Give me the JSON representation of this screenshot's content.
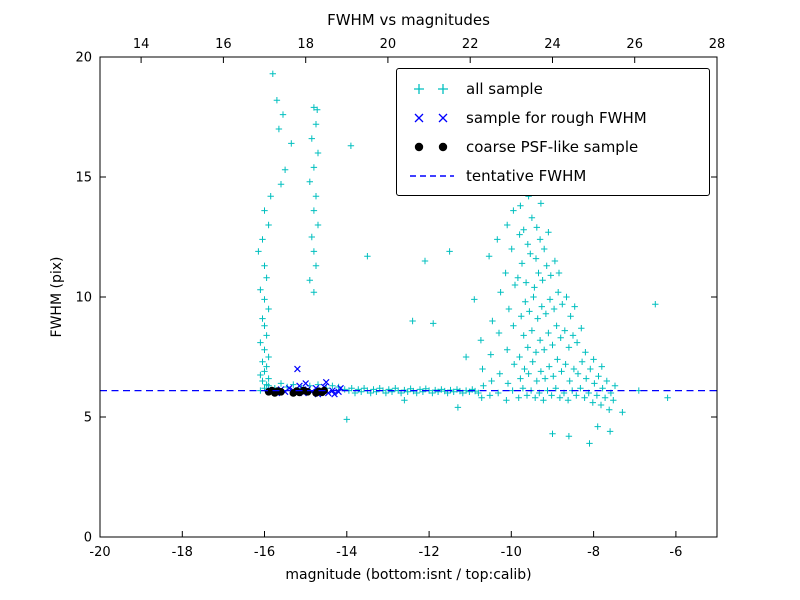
{
  "chart_data": {
    "type": "scatter",
    "title": "FWHM vs magnitudes",
    "xlabel": "magnitude (bottom:isnt / top:calib)",
    "ylabel": "FWHM (pix)",
    "x_range": [
      -20,
      -5
    ],
    "x_ticks": [
      -20,
      -18,
      -16,
      -14,
      -12,
      -10,
      -8,
      -6
    ],
    "x_top_range": [
      13,
      28
    ],
    "x_top_ticks": [
      14,
      16,
      18,
      20,
      22,
      24,
      26,
      28
    ],
    "y_range": [
      0,
      20
    ],
    "y_ticks": [
      0,
      5,
      10,
      15,
      20
    ],
    "grid": false,
    "legend_position": "upper right",
    "axis_color": "#000000",
    "series": [
      {
        "name": "all sample",
        "marker": "plus",
        "color": "#00bfbf",
        "points": [
          [
            -16.1,
            6.1
          ],
          [
            -16.0,
            6.2
          ],
          [
            -15.95,
            6.35
          ],
          [
            -16.05,
            6.5
          ],
          [
            -15.9,
            6.6
          ],
          [
            -16.1,
            6.75
          ],
          [
            -16.0,
            6.9
          ],
          [
            -15.95,
            7.1
          ],
          [
            -16.05,
            7.3
          ],
          [
            -15.9,
            7.5
          ],
          [
            -16.0,
            7.8
          ],
          [
            -16.1,
            8.1
          ],
          [
            -15.95,
            8.4
          ],
          [
            -16.0,
            8.8
          ],
          [
            -16.05,
            9.1
          ],
          [
            -15.9,
            9.5
          ],
          [
            -16.0,
            9.9
          ],
          [
            -16.1,
            10.3
          ],
          [
            -15.95,
            10.8
          ],
          [
            -16.0,
            11.3
          ],
          [
            -16.15,
            11.9
          ],
          [
            -16.05,
            12.4
          ],
          [
            -15.9,
            13.0
          ],
          [
            -16.0,
            13.6
          ],
          [
            -15.85,
            14.2
          ],
          [
            -15.8,
            19.3
          ],
          [
            -15.7,
            18.2
          ],
          [
            -15.55,
            17.6
          ],
          [
            -15.65,
            17.0
          ],
          [
            -15.35,
            16.4
          ],
          [
            -15.5,
            15.3
          ],
          [
            -15.6,
            14.7
          ],
          [
            -14.8,
            17.9
          ],
          [
            -14.75,
            17.2
          ],
          [
            -14.85,
            16.6
          ],
          [
            -14.7,
            16.0
          ],
          [
            -14.8,
            15.4
          ],
          [
            -14.9,
            14.8
          ],
          [
            -14.75,
            14.2
          ],
          [
            -14.8,
            13.6
          ],
          [
            -14.7,
            13.0
          ],
          [
            -14.85,
            12.5
          ],
          [
            -14.8,
            11.9
          ],
          [
            -14.75,
            11.3
          ],
          [
            -14.9,
            10.7
          ],
          [
            -14.8,
            10.2
          ],
          [
            -14.72,
            17.8
          ],
          [
            -13.9,
            16.3
          ],
          [
            -13.5,
            11.7
          ],
          [
            -12.1,
            11.5
          ],
          [
            -12.4,
            9.0
          ],
          [
            -11.9,
            8.9
          ],
          [
            -11.5,
            11.9
          ],
          [
            -11.1,
            7.5
          ],
          [
            -10.9,
            9.9
          ],
          [
            -15.9,
            6.3
          ],
          [
            -15.75,
            6.2
          ],
          [
            -15.6,
            6.4
          ],
          [
            -15.45,
            6.25
          ],
          [
            -15.3,
            6.35
          ],
          [
            -15.1,
            6.2
          ],
          [
            -14.9,
            6.3
          ],
          [
            -14.7,
            6.35
          ],
          [
            -14.5,
            6.2
          ],
          [
            -14.35,
            6.3
          ],
          [
            -14.2,
            6.25
          ],
          [
            -14.05,
            6.15
          ],
          [
            -13.95,
            6.1
          ],
          [
            -13.88,
            6.2
          ],
          [
            -13.8,
            6.0
          ],
          [
            -13.72,
            6.15
          ],
          [
            -13.65,
            6.05
          ],
          [
            -13.58,
            6.2
          ],
          [
            -13.5,
            6.1
          ],
          [
            -13.42,
            6.0
          ],
          [
            -13.35,
            6.15
          ],
          [
            -13.28,
            6.05
          ],
          [
            -13.2,
            6.2
          ],
          [
            -13.12,
            6.1
          ],
          [
            -13.05,
            6.0
          ],
          [
            -12.98,
            6.15
          ],
          [
            -12.9,
            6.05
          ],
          [
            -12.82,
            6.2
          ],
          [
            -12.75,
            6.1
          ],
          [
            -12.68,
            6.0
          ],
          [
            -12.6,
            6.12
          ],
          [
            -12.52,
            6.05
          ],
          [
            -12.45,
            6.18
          ],
          [
            -12.38,
            6.08
          ],
          [
            -12.3,
            6.0
          ],
          [
            -12.22,
            6.15
          ],
          [
            -12.15,
            6.05
          ],
          [
            -12.08,
            6.18
          ],
          [
            -12.0,
            6.1
          ],
          [
            -11.92,
            6.0
          ],
          [
            -11.85,
            6.12
          ],
          [
            -11.78,
            6.05
          ],
          [
            -11.7,
            6.15
          ],
          [
            -11.62,
            6.08
          ],
          [
            -11.55,
            6.0
          ],
          [
            -11.48,
            6.12
          ],
          [
            -11.4,
            6.05
          ],
          [
            -11.32,
            6.15
          ],
          [
            -11.25,
            6.08
          ],
          [
            -11.18,
            6.0
          ],
          [
            -11.1,
            6.1
          ],
          [
            -11.02,
            6.05
          ],
          [
            -10.95,
            6.15
          ],
          [
            -10.88,
            6.08
          ],
          [
            -10.8,
            6.0
          ],
          [
            -14.0,
            4.9
          ],
          [
            -12.6,
            5.7
          ],
          [
            -11.3,
            5.4
          ],
          [
            -10.72,
            5.8
          ],
          [
            -10.68,
            6.3
          ],
          [
            -10.7,
            7.0
          ],
          [
            -10.74,
            8.2
          ],
          [
            -10.52,
            5.9
          ],
          [
            -10.48,
            6.5
          ],
          [
            -10.5,
            7.6
          ],
          [
            -10.46,
            9.0
          ],
          [
            -10.54,
            11.7
          ],
          [
            -10.32,
            6.0
          ],
          [
            -10.28,
            6.8
          ],
          [
            -10.3,
            8.5
          ],
          [
            -10.26,
            10.2
          ],
          [
            -10.34,
            12.4
          ],
          [
            -10.12,
            5.7
          ],
          [
            -10.08,
            6.4
          ],
          [
            -10.1,
            7.8
          ],
          [
            -10.06,
            9.5
          ],
          [
            -10.14,
            11.0
          ],
          [
            -10.1,
            13.0
          ],
          [
            -9.97,
            6.1
          ],
          [
            -9.93,
            7.2
          ],
          [
            -9.95,
            8.8
          ],
          [
            -9.91,
            10.5
          ],
          [
            -9.99,
            12.0
          ],
          [
            -9.95,
            13.6
          ],
          [
            -9.93,
            14.9
          ],
          [
            -9.82,
            5.8
          ],
          [
            -9.78,
            6.6
          ],
          [
            -9.8,
            7.5
          ],
          [
            -9.76,
            9.2
          ],
          [
            -9.84,
            10.8
          ],
          [
            -9.8,
            12.6
          ],
          [
            -9.78,
            13.8
          ],
          [
            -9.72,
            6.2
          ],
          [
            -9.68,
            7.0
          ],
          [
            -9.7,
            8.4
          ],
          [
            -9.66,
            9.8
          ],
          [
            -9.74,
            11.4
          ],
          [
            -9.7,
            12.8
          ],
          [
            -9.68,
            15.4
          ],
          [
            -9.62,
            5.9
          ],
          [
            -9.58,
            6.8
          ],
          [
            -9.6,
            7.9
          ],
          [
            -9.56,
            9.4
          ],
          [
            -9.64,
            10.6
          ],
          [
            -9.6,
            12.2
          ],
          [
            -9.58,
            14.2
          ],
          [
            -9.52,
            6.1
          ],
          [
            -9.48,
            7.3
          ],
          [
            -9.5,
            8.6
          ],
          [
            -9.46,
            10.0
          ],
          [
            -9.54,
            11.8
          ],
          [
            -9.5,
            13.3
          ],
          [
            -9.42,
            5.8
          ],
          [
            -9.38,
            6.5
          ],
          [
            -9.4,
            7.7
          ],
          [
            -9.36,
            9.1
          ],
          [
            -9.44,
            10.4
          ],
          [
            -9.4,
            11.6
          ],
          [
            -9.38,
            12.9
          ],
          [
            -9.32,
            6.0
          ],
          [
            -9.28,
            6.9
          ],
          [
            -9.3,
            8.2
          ],
          [
            -9.26,
            9.6
          ],
          [
            -9.34,
            11.0
          ],
          [
            -9.3,
            12.4
          ],
          [
            -9.28,
            13.9
          ],
          [
            -9.22,
            5.7
          ],
          [
            -9.18,
            6.6
          ],
          [
            -9.2,
            7.8
          ],
          [
            -9.16,
            9.3
          ],
          [
            -9.24,
            10.7
          ],
          [
            -9.2,
            12.0
          ],
          [
            -9.12,
            6.1
          ],
          [
            -9.08,
            7.1
          ],
          [
            -9.1,
            8.5
          ],
          [
            -9.06,
            9.9
          ],
          [
            -9.14,
            11.3
          ],
          [
            -9.1,
            12.7
          ],
          [
            -9.02,
            5.9
          ],
          [
            -8.98,
            6.7
          ],
          [
            -9.0,
            8.0
          ],
          [
            -8.96,
            9.5
          ],
          [
            -9.04,
            10.9
          ],
          [
            -9.0,
            4.3
          ],
          [
            -8.92,
            6.2
          ],
          [
            -8.88,
            7.4
          ],
          [
            -8.9,
            8.8
          ],
          [
            -8.86,
            10.2
          ],
          [
            -8.94,
            11.5
          ],
          [
            -8.82,
            5.8
          ],
          [
            -8.78,
            6.9
          ],
          [
            -8.8,
            8.3
          ],
          [
            -8.76,
            9.7
          ],
          [
            -8.84,
            11.0
          ],
          [
            -8.72,
            6.0
          ],
          [
            -8.68,
            7.2
          ],
          [
            -8.7,
            8.6
          ],
          [
            -8.66,
            10.0
          ],
          [
            -8.62,
            5.7
          ],
          [
            -8.58,
            6.5
          ],
          [
            -8.6,
            7.9
          ],
          [
            -8.56,
            9.2
          ],
          [
            -8.6,
            4.2
          ],
          [
            -8.52,
            6.1
          ],
          [
            -8.48,
            7.0
          ],
          [
            -8.5,
            8.4
          ],
          [
            -8.46,
            9.6
          ],
          [
            -8.42,
            5.9
          ],
          [
            -8.38,
            6.8
          ],
          [
            -8.4,
            8.1
          ],
          [
            -8.32,
            6.2
          ],
          [
            -8.28,
            7.3
          ],
          [
            -8.3,
            8.7
          ],
          [
            -8.22,
            5.8
          ],
          [
            -8.18,
            6.6
          ],
          [
            -8.2,
            7.7
          ],
          [
            -8.12,
            6.0
          ],
          [
            -8.08,
            7.0
          ],
          [
            -8.1,
            3.9
          ],
          [
            -8.02,
            5.6
          ],
          [
            -7.98,
            6.4
          ],
          [
            -8.0,
            7.4
          ],
          [
            -7.92,
            5.9
          ],
          [
            -7.88,
            6.7
          ],
          [
            -7.9,
            4.6
          ],
          [
            -7.82,
            5.5
          ],
          [
            -7.78,
            6.2
          ],
          [
            -7.8,
            7.1
          ],
          [
            -7.72,
            5.8
          ],
          [
            -7.68,
            6.5
          ],
          [
            -7.62,
            5.3
          ],
          [
            -7.58,
            6.0
          ],
          [
            -7.6,
            4.4
          ],
          [
            -7.52,
            5.7
          ],
          [
            -7.48,
            6.3
          ],
          [
            -7.3,
            5.2
          ],
          [
            -6.9,
            6.1
          ],
          [
            -6.5,
            9.7
          ],
          [
            -6.2,
            5.8
          ]
        ]
      },
      {
        "name": "sample for rough FWHM",
        "marker": "x",
        "color": "#0000ff",
        "points": [
          [
            -15.85,
            6.1
          ],
          [
            -15.7,
            6.0
          ],
          [
            -15.6,
            6.15
          ],
          [
            -15.5,
            6.05
          ],
          [
            -15.4,
            6.2
          ],
          [
            -15.3,
            6.1
          ],
          [
            -15.2,
            7.0
          ],
          [
            -15.15,
            6.3
          ],
          [
            -15.05,
            6.0
          ],
          [
            -14.95,
            6.15
          ],
          [
            -14.85,
            6.05
          ],
          [
            -14.75,
            6.2
          ],
          [
            -14.7,
            5.95
          ],
          [
            -14.6,
            6.1
          ],
          [
            -14.55,
            6.25
          ],
          [
            -14.45,
            6.0
          ],
          [
            -14.35,
            6.1
          ],
          [
            -14.3,
            5.95
          ],
          [
            -14.2,
            6.05
          ],
          [
            -14.15,
            6.2
          ],
          [
            -14.5,
            6.45
          ],
          [
            -15.0,
            6.4
          ]
        ]
      },
      {
        "name": "coarse PSF-like sample",
        "marker": "dot",
        "color": "#000000",
        "points": [
          [
            -15.9,
            6.05
          ],
          [
            -15.82,
            6.1
          ],
          [
            -15.75,
            6.0
          ],
          [
            -15.68,
            6.08
          ],
          [
            -15.6,
            6.05
          ],
          [
            -15.3,
            6.0
          ],
          [
            -15.22,
            6.08
          ],
          [
            -15.15,
            6.02
          ],
          [
            -15.05,
            6.1
          ],
          [
            -14.95,
            6.05
          ],
          [
            -14.75,
            6.0
          ],
          [
            -14.68,
            6.07
          ],
          [
            -14.6,
            6.03
          ],
          [
            -14.55,
            6.1
          ]
        ]
      },
      {
        "name": "tentative FWHM",
        "marker": "dashed-line",
        "color": "#0000ff",
        "y": 6.1
      }
    ]
  }
}
